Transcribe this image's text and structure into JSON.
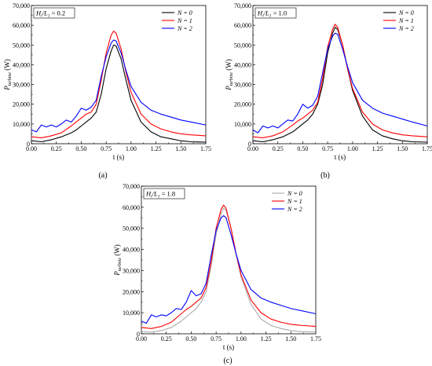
{
  "figure": {
    "captions": [
      "(a)",
      "(b)",
      "(c)"
    ]
  },
  "chart_data": [
    {
      "type": "line",
      "panel": "(a)",
      "annotation": "H_i/L_1 = 0.2",
      "xlabel": "t (s)",
      "ylabel": "P_turbine (W)",
      "xlim": [
        0,
        1.75
      ],
      "ylim": [
        0,
        70000
      ],
      "xticks": [
        "0.00",
        "0.25",
        "0.50",
        "0.75",
        "1.00",
        "1.25",
        "1.50",
        "1.75"
      ],
      "yticks": [
        "0",
        "10,000",
        "20,000",
        "30,000",
        "40,000",
        "50,000",
        "60,000",
        "70,000"
      ],
      "legend_position": "top-right",
      "series": [
        {
          "name": "N = 0",
          "color": "#000000",
          "x": [
            0,
            0.1,
            0.2,
            0.3,
            0.4,
            0.45,
            0.5,
            0.55,
            0.6,
            0.65,
            0.7,
            0.75,
            0.8,
            0.825,
            0.85,
            0.9,
            0.95,
            1.0,
            1.1,
            1.2,
            1.3,
            1.4,
            1.5,
            1.6,
            1.75
          ],
          "y": [
            1500,
            1000,
            2000,
            3500,
            5500,
            7000,
            9000,
            11000,
            13000,
            16000,
            25000,
            38000,
            47000,
            50000,
            49500,
            43000,
            32000,
            22000,
            11000,
            6000,
            3500,
            2500,
            1500,
            1000,
            800
          ]
        },
        {
          "name": "N = 1",
          "color": "#ff0000",
          "x": [
            0,
            0.1,
            0.2,
            0.3,
            0.4,
            0.45,
            0.5,
            0.55,
            0.6,
            0.65,
            0.7,
            0.75,
            0.8,
            0.825,
            0.85,
            0.9,
            0.95,
            1.0,
            1.1,
            1.2,
            1.3,
            1.4,
            1.5,
            1.6,
            1.75
          ],
          "y": [
            3500,
            3000,
            4000,
            5500,
            9000,
            11000,
            13000,
            15000,
            16000,
            20000,
            32000,
            46000,
            55000,
            57000,
            56000,
            48000,
            36000,
            26000,
            15000,
            10000,
            7500,
            6000,
            5000,
            4500,
            4000
          ]
        },
        {
          "name": "N = 2",
          "color": "#0000ff",
          "x": [
            0,
            0.05,
            0.1,
            0.15,
            0.2,
            0.25,
            0.3,
            0.35,
            0.4,
            0.45,
            0.5,
            0.55,
            0.6,
            0.65,
            0.7,
            0.75,
            0.8,
            0.825,
            0.85,
            0.9,
            0.95,
            1.0,
            1.1,
            1.2,
            1.3,
            1.4,
            1.5,
            1.6,
            1.75
          ],
          "y": [
            7000,
            6000,
            9500,
            8500,
            9500,
            8500,
            10000,
            12000,
            11000,
            14000,
            18000,
            17000,
            18500,
            22000,
            34000,
            44000,
            51000,
            52500,
            52000,
            46000,
            37000,
            29000,
            21000,
            17000,
            15000,
            13500,
            12000,
            11000,
            9500
          ]
        }
      ]
    },
    {
      "type": "line",
      "panel": "(b)",
      "annotation": "H_i/L_1 = 1.0",
      "xlabel": "t (s)",
      "ylabel": "P_turbine (W)",
      "xlim": [
        0,
        1.75
      ],
      "ylim": [
        0,
        70000
      ],
      "xticks": [
        "0.00",
        "0.25",
        "0.50",
        "0.75",
        "1.00",
        "1.25",
        "1.50",
        "1.75"
      ],
      "yticks": [
        "0",
        "10,000",
        "20,000",
        "30,000",
        "40,000",
        "50,000",
        "60,000",
        "70,000"
      ],
      "legend_position": "top-right",
      "series": [
        {
          "name": "N = 0",
          "color": "#000000",
          "x": [
            0,
            0.1,
            0.2,
            0.3,
            0.4,
            0.45,
            0.5,
            0.55,
            0.6,
            0.65,
            0.7,
            0.75,
            0.8,
            0.825,
            0.85,
            0.9,
            0.95,
            1.0,
            1.1,
            1.2,
            1.3,
            1.4,
            1.5,
            1.6,
            1.75
          ],
          "y": [
            1500,
            1000,
            2000,
            3500,
            6000,
            8000,
            10000,
            12000,
            15000,
            20000,
            30000,
            46000,
            56000,
            59000,
            58000,
            50000,
            38000,
            27000,
            14000,
            7000,
            4000,
            2500,
            1500,
            1000,
            800
          ]
        },
        {
          "name": "N = 1",
          "color": "#ff0000",
          "x": [
            0,
            0.1,
            0.2,
            0.3,
            0.4,
            0.45,
            0.5,
            0.55,
            0.6,
            0.65,
            0.7,
            0.75,
            0.8,
            0.825,
            0.85,
            0.9,
            0.95,
            1.0,
            1.1,
            1.2,
            1.3,
            1.4,
            1.5,
            1.6,
            1.75
          ],
          "y": [
            3500,
            3000,
            4000,
            6000,
            9500,
            11500,
            13000,
            15000,
            17000,
            21000,
            33000,
            49000,
            58000,
            60500,
            59000,
            50000,
            38000,
            28000,
            16000,
            10000,
            7000,
            5500,
            4500,
            4000,
            3500
          ]
        },
        {
          "name": "N = 2",
          "color": "#0000ff",
          "x": [
            0,
            0.05,
            0.1,
            0.15,
            0.2,
            0.25,
            0.3,
            0.35,
            0.4,
            0.45,
            0.5,
            0.55,
            0.6,
            0.65,
            0.7,
            0.75,
            0.8,
            0.825,
            0.85,
            0.9,
            0.95,
            1.0,
            1.1,
            1.2,
            1.3,
            1.4,
            1.5,
            1.6,
            1.75
          ],
          "y": [
            7000,
            5500,
            9000,
            8000,
            9000,
            8000,
            10000,
            12000,
            11500,
            15000,
            20000,
            18000,
            19500,
            24000,
            36000,
            48000,
            54500,
            56000,
            55500,
            48000,
            39000,
            31000,
            22000,
            18000,
            15500,
            14000,
            12500,
            11000,
            9000
          ]
        }
      ]
    },
    {
      "type": "line",
      "panel": "(c)",
      "annotation": "H_i/L_1 = 1.8",
      "xlabel": "t (s)",
      "ylabel": "P_turbine (W)",
      "xlim": [
        0,
        1.75
      ],
      "ylim": [
        0,
        70000
      ],
      "xticks": [
        "0.00",
        "0.25",
        "0.50",
        "0.75",
        "1.00",
        "1.25",
        "1.50",
        "1.75"
      ],
      "yticks": [
        "0",
        "10,000",
        "20,000",
        "30,000",
        "40,000",
        "50,000",
        "60,000",
        "70,000"
      ],
      "legend_position": "top-right",
      "series": [
        {
          "name": "N = 0",
          "color": "#aaaaaa",
          "x": [
            0,
            0.1,
            0.2,
            0.3,
            0.4,
            0.45,
            0.5,
            0.55,
            0.6,
            0.65,
            0.7,
            0.75,
            0.8,
            0.825,
            0.85,
            0.9,
            0.95,
            1.0,
            1.1,
            1.2,
            1.3,
            1.4,
            1.5,
            1.6,
            1.75
          ],
          "y": [
            1000,
            800,
            1500,
            3000,
            6000,
            8000,
            10000,
            12000,
            15000,
            20000,
            32000,
            47000,
            57000,
            59500,
            58500,
            50000,
            38000,
            27000,
            14000,
            7000,
            4000,
            2500,
            1500,
            1000,
            800
          ]
        },
        {
          "name": "N = 1",
          "color": "#ff0000",
          "x": [
            0,
            0.1,
            0.2,
            0.3,
            0.4,
            0.45,
            0.5,
            0.55,
            0.6,
            0.65,
            0.7,
            0.75,
            0.8,
            0.825,
            0.85,
            0.9,
            0.95,
            1.0,
            1.1,
            1.2,
            1.3,
            1.4,
            1.5,
            1.6,
            1.75
          ],
          "y": [
            3000,
            2500,
            3500,
            5500,
            9500,
            11500,
            13000,
            15000,
            17000,
            22000,
            34000,
            50000,
            59000,
            61000,
            59500,
            50000,
            38000,
            28000,
            16000,
            10000,
            7000,
            5500,
            4500,
            4000,
            3500
          ]
        },
        {
          "name": "N = 2",
          "color": "#0000ff",
          "x": [
            0,
            0.05,
            0.1,
            0.15,
            0.2,
            0.25,
            0.3,
            0.35,
            0.4,
            0.45,
            0.5,
            0.55,
            0.6,
            0.65,
            0.7,
            0.75,
            0.8,
            0.825,
            0.85,
            0.9,
            0.95,
            1.0,
            1.1,
            1.2,
            1.3,
            1.4,
            1.5,
            1.6,
            1.75
          ],
          "y": [
            6000,
            5000,
            9000,
            8000,
            9000,
            8500,
            10000,
            12000,
            11500,
            15000,
            20500,
            18000,
            19000,
            24000,
            37000,
            49000,
            55000,
            56000,
            55000,
            47000,
            38000,
            30000,
            21000,
            17000,
            15000,
            13500,
            12000,
            11000,
            9500
          ]
        }
      ]
    }
  ]
}
